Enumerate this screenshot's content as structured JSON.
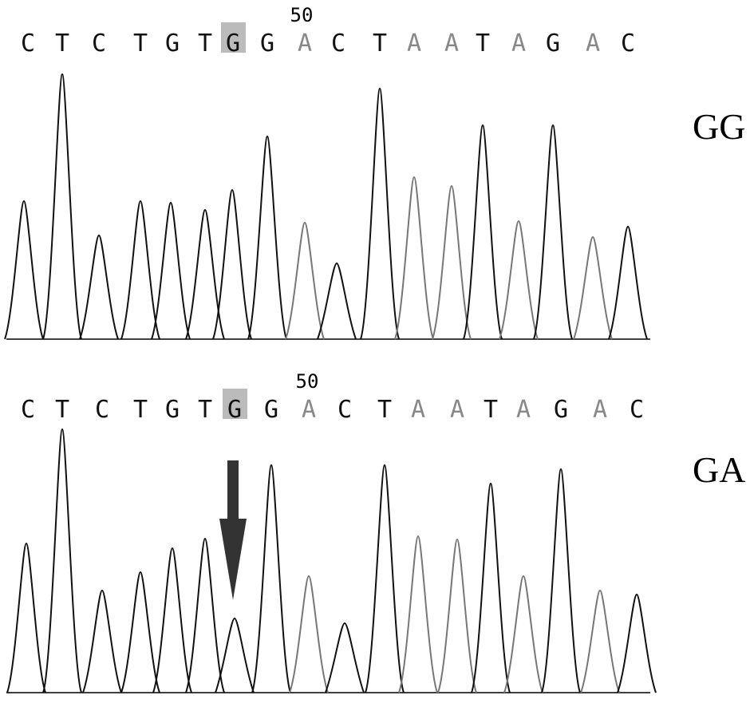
{
  "panels": [
    {
      "position_label": "50",
      "sequence": [
        "C",
        "T",
        "C",
        "T",
        "G",
        "T",
        "G",
        "G",
        "A",
        "C",
        "T",
        "A",
        "A",
        "T",
        "A",
        "G",
        "A",
        "C"
      ],
      "genotype": "GG"
    },
    {
      "position_label": "50",
      "sequence": [
        "C",
        "T",
        "C",
        "T",
        "G",
        "T",
        "G",
        "G",
        "A",
        "C",
        "T",
        "A",
        "A",
        "T",
        "A",
        "G",
        "A",
        "C"
      ],
      "genotype": "GA"
    }
  ]
}
